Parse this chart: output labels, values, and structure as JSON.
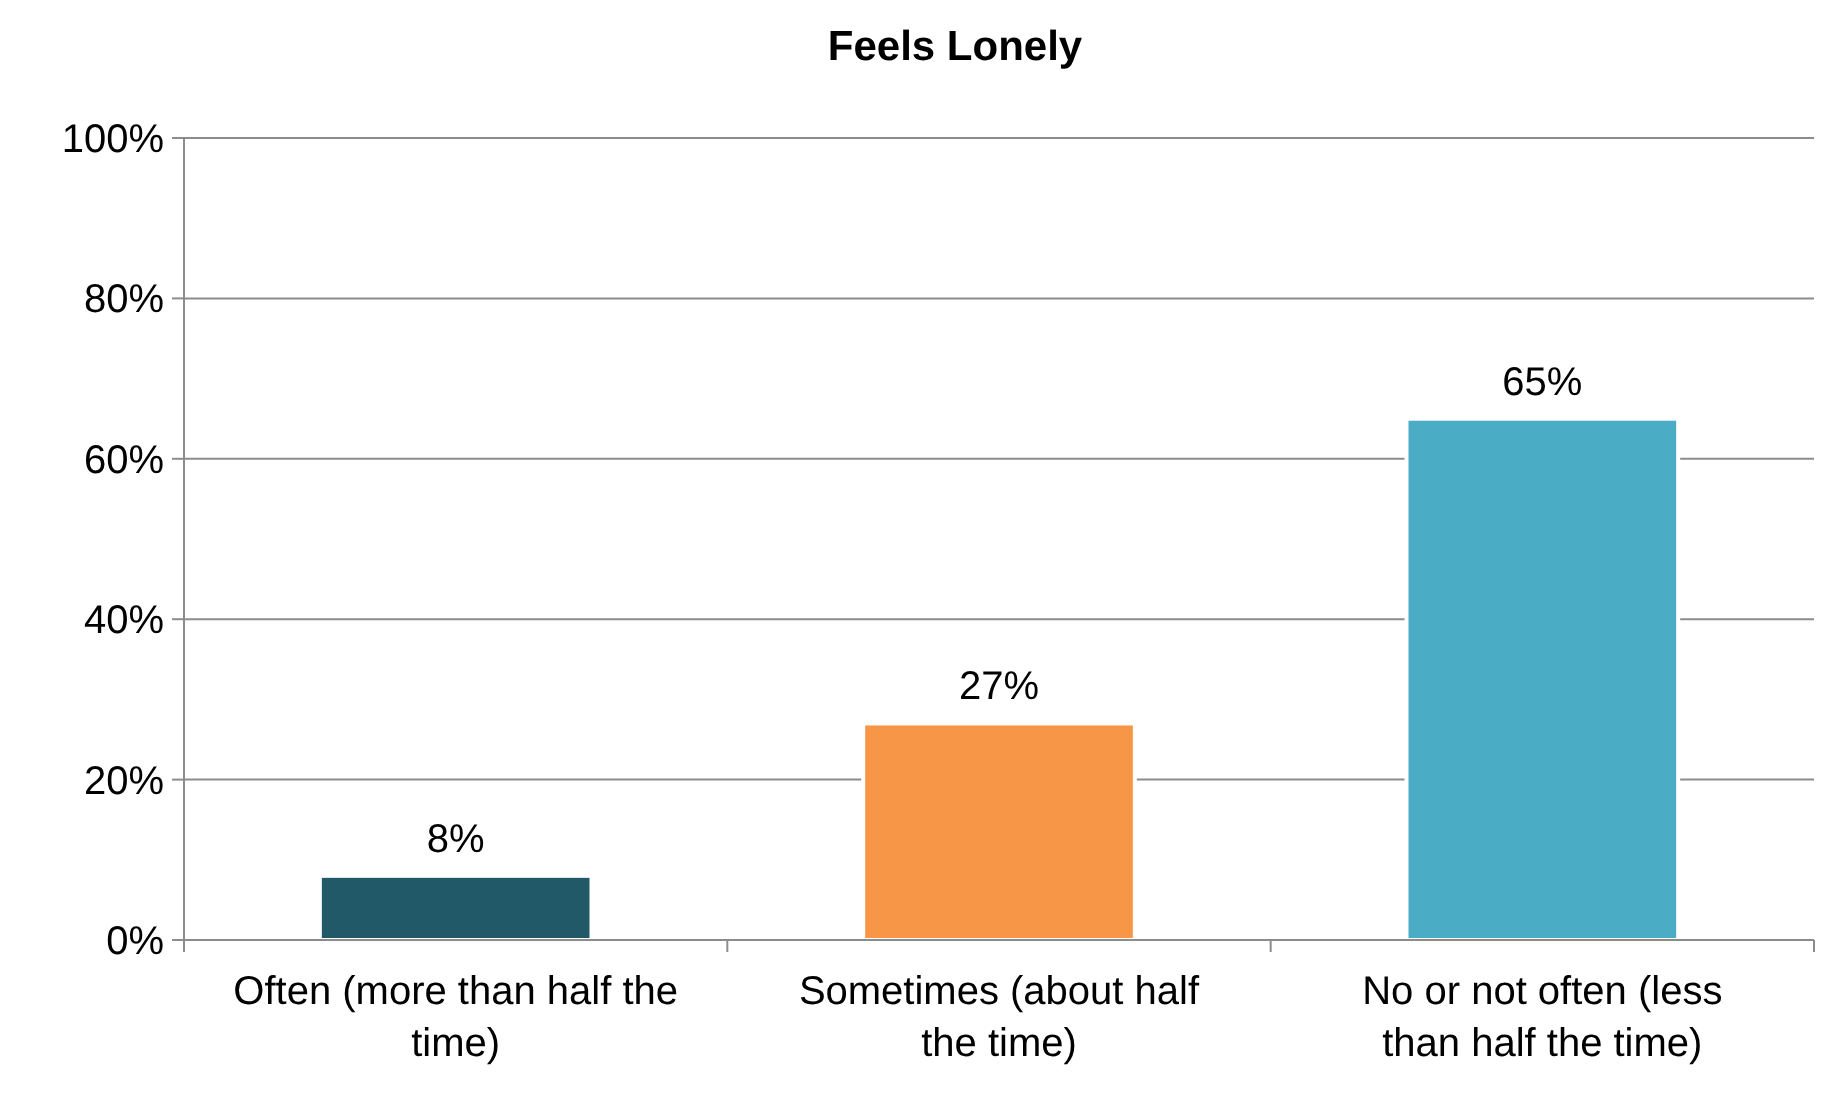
{
  "chart_data": {
    "type": "bar",
    "title": "Feels Lonely",
    "categories": [
      "Often (more than half the time)",
      "Sometimes (about half the time)",
      "No or not often (less than half the time)"
    ],
    "values": [
      8,
      27,
      65
    ],
    "colors": [
      "#215968",
      "#f79646",
      "#4bacc6"
    ],
    "value_labels": [
      "8%",
      "27%",
      "65%"
    ],
    "ylim": [
      0,
      100
    ],
    "yticks": [
      {
        "value": 0,
        "label": "0%"
      },
      {
        "value": 20,
        "label": "20%"
      },
      {
        "value": 40,
        "label": "40%"
      },
      {
        "value": 60,
        "label": "60%"
      },
      {
        "value": 80,
        "label": "80%"
      },
      {
        "value": 100,
        "label": "100%"
      }
    ],
    "grid": "y"
  }
}
